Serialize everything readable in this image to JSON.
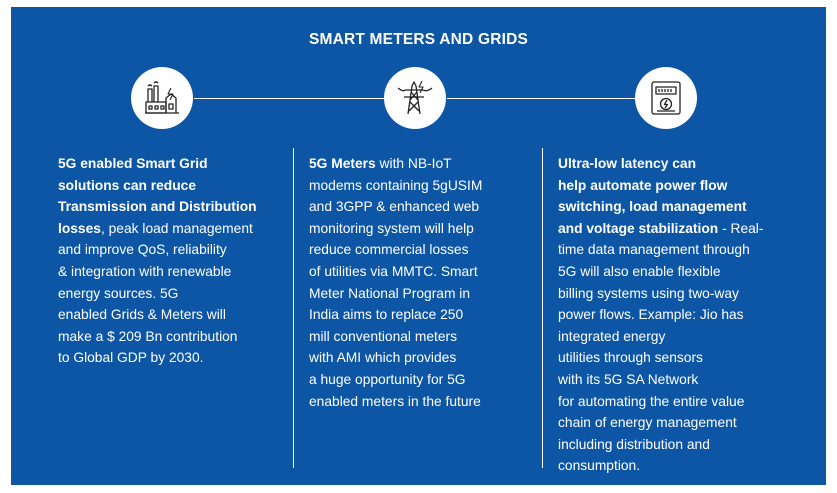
{
  "title": "SMART METERS AND GRIDS",
  "icons": [
    "power-plant-icon",
    "transmission-tower-icon",
    "electricity-meter-icon"
  ],
  "columns": [
    {
      "lines": [
        [
          {
            "text": "5G enabled Smart Grid",
            "bold": true
          }
        ],
        [
          {
            "text": "solutions can reduce",
            "bold": true
          }
        ],
        [
          {
            "text": "Transmission and Distribution",
            "bold": true
          }
        ],
        [
          {
            "text": "losses",
            "bold": true
          },
          {
            "text": ", peak load management",
            "bold": false
          }
        ],
        [
          {
            "text": "and improve QoS, reliability",
            "bold": false
          }
        ],
        [
          {
            "text": "& integration with renewable",
            "bold": false
          }
        ],
        [
          {
            "text": "energy sources. 5G",
            "bold": false
          }
        ],
        [
          {
            "text": "enabled Grids & Meters will",
            "bold": false
          }
        ],
        [
          {
            "text": "make a $ 209 Bn  contribution",
            "bold": false
          }
        ],
        [
          {
            "text": "to Global GDP by 2030.",
            "bold": false
          }
        ]
      ]
    },
    {
      "lines": [
        [
          {
            "text": "5G Meters",
            "bold": true
          },
          {
            "text": " with NB-IoT",
            "bold": false
          }
        ],
        [
          {
            "text": "modems containing 5gUSIM",
            "bold": false
          }
        ],
        [
          {
            "text": "and 3GPP & enhanced web",
            "bold": false
          }
        ],
        [
          {
            "text": "monitoring system will help",
            "bold": false
          }
        ],
        [
          {
            "text": "reduce commercial losses",
            "bold": false
          }
        ],
        [
          {
            "text": "of utilities via MMTC. Smart",
            "bold": false
          }
        ],
        [
          {
            "text": "Meter National Program in",
            "bold": false
          }
        ],
        [
          {
            "text": "India aims to replace 250",
            "bold": false
          }
        ],
        [
          {
            "text": "mill conventional meters",
            "bold": false
          }
        ],
        [
          {
            "text": "with AMI which provides",
            "bold": false
          }
        ],
        [
          {
            "text": "a huge opportunity for 5G",
            "bold": false
          }
        ],
        [
          {
            "text": "enabled meters in the future",
            "bold": false
          }
        ]
      ]
    },
    {
      "lines": [
        [
          {
            "text": "Ultra-low latency can",
            "bold": true
          }
        ],
        [
          {
            "text": "help automate power flow",
            "bold": true
          }
        ],
        [
          {
            "text": "switching, load management",
            "bold": true
          }
        ],
        [
          {
            "text": "and voltage stabilization",
            "bold": true
          },
          {
            "text": " - Real-",
            "bold": false
          }
        ],
        [
          {
            "text": "time data management through",
            "bold": false
          }
        ],
        [
          {
            "text": "5G will also enable flexible",
            "bold": false
          }
        ],
        [
          {
            "text": "billing systems using two-way",
            "bold": false
          }
        ],
        [
          {
            "text": "power flows. Example: Jio has",
            "bold": false
          }
        ],
        [
          {
            "text": "integrated energy",
            "bold": false
          }
        ],
        [
          {
            "text": "utilities through sensors",
            "bold": false
          }
        ],
        [
          {
            "text": "with its 5G SA Network",
            "bold": false
          }
        ],
        [
          {
            "text": "for automating the entire value",
            "bold": false
          }
        ],
        [
          {
            "text": "chain of energy management",
            "bold": false
          }
        ],
        [
          {
            "text": "including distribution and",
            "bold": false
          }
        ],
        [
          {
            "text": "consumption.",
            "bold": false
          }
        ]
      ]
    }
  ]
}
